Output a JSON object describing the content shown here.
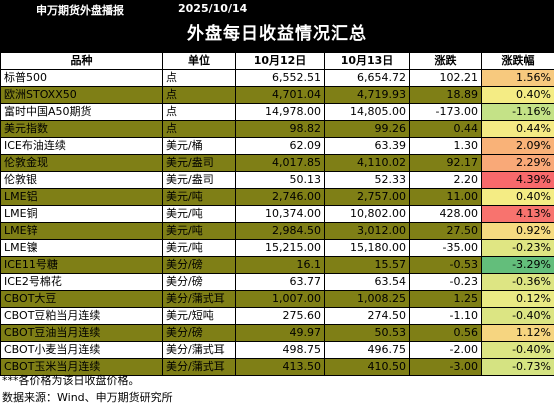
{
  "header": {
    "brand": "申万期货外盘播报",
    "date": "2025/10/14",
    "title": "外盘每日收益情况汇总"
  },
  "table": {
    "columns": [
      "品种",
      "单位",
      "10月12日",
      "10月13日",
      "涨跌",
      "涨跌幅"
    ],
    "rows": [
      {
        "name": "标普500",
        "unit": "点",
        "d1": "6,552.51",
        "d2": "6,654.72",
        "chg": "102.21",
        "pct": "1.56%",
        "color": "#f7c97e"
      },
      {
        "name": "欧洲STOXX50",
        "unit": "点",
        "d1": "4,701.04",
        "d2": "4,719.93",
        "chg": "18.89",
        "pct": "0.40%",
        "color": "#f4ec84"
      },
      {
        "name": "富时中国A50期货",
        "unit": "点",
        "d1": "14,978.00",
        "d2": "14,805.00",
        "chg": "-173.00",
        "pct": "-1.16%",
        "color": "#c4e287"
      },
      {
        "name": "美元指数",
        "unit": "点",
        "d1": "98.82",
        "d2": "99.26",
        "chg": "0.44",
        "pct": "0.44%",
        "color": "#f4ea84"
      },
      {
        "name": "ICE布油连续",
        "unit": "美元/桶",
        "d1": "62.09",
        "d2": "63.39",
        "chg": "1.30",
        "pct": "2.09%",
        "color": "#f9b278"
      },
      {
        "name": "伦敦金现",
        "unit": "美元/盎司",
        "d1": "4,017.85",
        "d2": "4,110.02",
        "chg": "92.17",
        "pct": "2.29%",
        "color": "#f9a978"
      },
      {
        "name": "伦敦银",
        "unit": "美元/盎司",
        "d1": "50.13",
        "d2": "52.33",
        "chg": "2.20",
        "pct": "4.39%",
        "color": "#f8696b"
      },
      {
        "name": "LME铝",
        "unit": "美元/吨",
        "d1": "2,746.00",
        "d2": "2,757.00",
        "chg": "11.00",
        "pct": "0.40%",
        "color": "#f4ec84"
      },
      {
        "name": "LME铜",
        "unit": "美元/吨",
        "d1": "10,374.00",
        "d2": "10,802.00",
        "chg": "428.00",
        "pct": "4.13%",
        "color": "#f8736e"
      },
      {
        "name": "LME锌",
        "unit": "美元/吨",
        "d1": "2,984.50",
        "d2": "3,012.00",
        "chg": "27.50",
        "pct": "0.92%",
        "color": "#f6db81"
      },
      {
        "name": "LME镍",
        "unit": "美元/吨",
        "d1": "15,215.00",
        "d2": "15,180.00",
        "chg": "-35.00",
        "pct": "-0.23%",
        "color": "#e0e683"
      },
      {
        "name": "ICE11号糖",
        "unit": "美分/磅",
        "d1": "16.1",
        "d2": "15.57",
        "chg": "-0.53",
        "pct": "-3.29%",
        "color": "#63be7b"
      },
      {
        "name": "ICE2号棉花",
        "unit": "美分/磅",
        "d1": "63.77",
        "d2": "63.54",
        "chg": "-0.23",
        "pct": "-0.36%",
        "color": "#dde583"
      },
      {
        "name": "CBOT大豆",
        "unit": "美分/蒲式耳",
        "d1": "1,007.00",
        "d2": "1,008.25",
        "chg": "1.25",
        "pct": "0.12%",
        "color": "#eaea84"
      },
      {
        "name": "CBOT豆粕当月连续",
        "unit": "美元/短吨",
        "d1": "275.60",
        "d2": "274.50",
        "chg": "-1.10",
        "pct": "-0.40%",
        "color": "#dce583"
      },
      {
        "name": "CBOT豆油当月连续",
        "unit": "美分/磅",
        "d1": "49.97",
        "d2": "50.53",
        "chg": "0.56",
        "pct": "1.12%",
        "color": "#f6d580"
      },
      {
        "name": "CBOT小麦当月连续",
        "unit": "美分/蒲式耳",
        "d1": "498.75",
        "d2": "496.75",
        "chg": "-2.00",
        "pct": "-0.40%",
        "color": "#dce583"
      },
      {
        "name": "CBOT玉米当月连续",
        "unit": "美分/蒲式耳",
        "d1": "413.50",
        "d2": "410.50",
        "chg": "-3.00",
        "pct": "-0.73%",
        "color": "#d5e382"
      }
    ]
  },
  "footer": {
    "note": "***各价格为该日收盘价格。",
    "source": "数据来源：Wind、申万期货研究所"
  }
}
